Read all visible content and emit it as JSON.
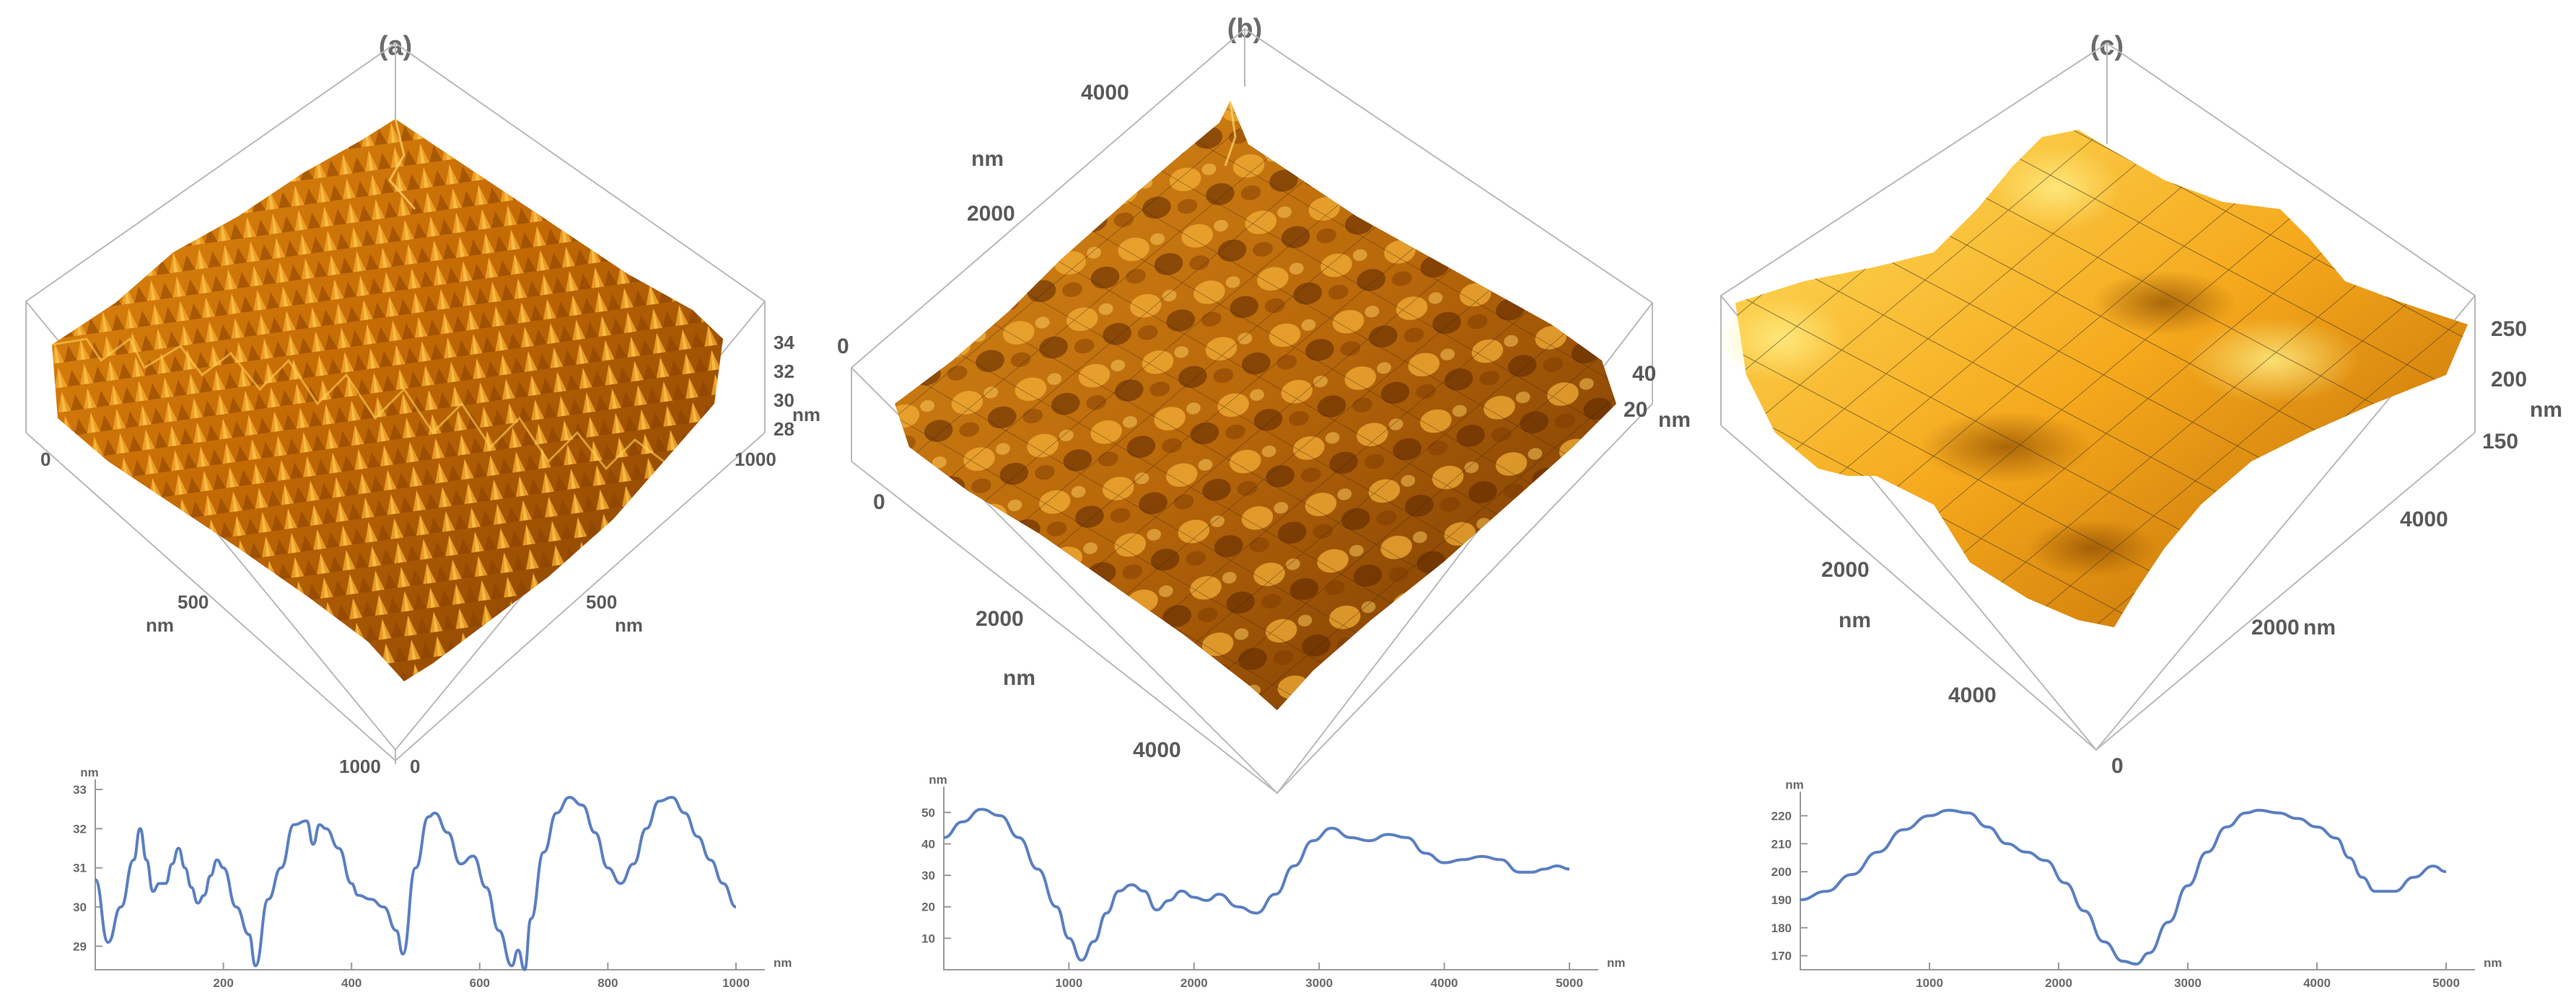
{
  "panels": [
    {
      "label": "(a)",
      "surface": {
        "xy_ticks_left": [
          "0",
          "500",
          "1000"
        ],
        "xy_unit_left": "nm",
        "xy_ticks_right": [
          "0",
          "500",
          "1000"
        ],
        "xy_unit_right": "nm",
        "z_ticks": [
          "34",
          "32",
          "30",
          "28"
        ],
        "z_unit": "nm",
        "palette": [
          "#7a3a00",
          "#c96a00",
          "#f0a420",
          "#ffd24a"
        ]
      },
      "profile": {
        "y_unit": "nm",
        "x_unit": "nm",
        "y_ticks": [
          "33",
          "32",
          "31",
          "30",
          "29"
        ],
        "x_ticks": [
          "200",
          "400",
          "600",
          "800",
          "1000"
        ]
      }
    },
    {
      "label": "(b)",
      "surface": {
        "xy_ticks_left": [
          "4000",
          "2000",
          "0"
        ],
        "xy_unit_left": "nm",
        "xy_ticks_bottom": [
          "0",
          "2000",
          "4000"
        ],
        "xy_unit_bottom": "nm",
        "z_ticks": [
          "40",
          "20"
        ],
        "z_unit": "nm",
        "palette": [
          "#6b3000",
          "#b8670a",
          "#e89a22",
          "#ffce45"
        ]
      },
      "profile": {
        "y_unit": "nm",
        "x_unit": "nm",
        "y_ticks": [
          "50",
          "40",
          "30",
          "20",
          "10"
        ],
        "x_ticks": [
          "1000",
          "2000",
          "3000",
          "4000",
          "5000"
        ]
      }
    },
    {
      "label": "(c)",
      "surface": {
        "xy_ticks_left": [
          "2000",
          "4000"
        ],
        "xy_unit_left": "nm",
        "xy_ticks_right": [
          "0",
          "2000",
          "4000"
        ],
        "xy_unit_right": "nm",
        "z_ticks": [
          "250",
          "200",
          "150"
        ],
        "z_unit": "nm",
        "palette": [
          "#8a4a00",
          "#e08a10",
          "#ffbf2a",
          "#ffe46a"
        ]
      },
      "profile": {
        "y_unit": "nm",
        "x_unit": "nm",
        "y_ticks": [
          "220",
          "210",
          "200",
          "190",
          "180",
          "170"
        ],
        "x_ticks": [
          "1000",
          "2000",
          "3000",
          "4000",
          "5000"
        ]
      }
    }
  ],
  "chart_data": [
    {
      "type": "line",
      "title": "",
      "xlabel": "nm",
      "ylabel": "nm",
      "xlim": [
        0,
        1000
      ],
      "ylim": [
        28.4,
        33
      ],
      "x": [
        0,
        20,
        40,
        60,
        70,
        80,
        90,
        100,
        110,
        120,
        130,
        140,
        150,
        160,
        170,
        180,
        190,
        200,
        220,
        240,
        250,
        270,
        290,
        310,
        330,
        340,
        350,
        360,
        380,
        400,
        410,
        430,
        450,
        470,
        480,
        500,
        520,
        530,
        550,
        570,
        590,
        610,
        630,
        650,
        660,
        670,
        680,
        700,
        720,
        740,
        760,
        780,
        800,
        820,
        840,
        860,
        880,
        900,
        920,
        940,
        960,
        980,
        1000
      ],
      "series": [
        {
          "values": [
            30.7,
            29.1,
            30.0,
            31.2,
            32.0,
            31.2,
            30.4,
            30.6,
            30.6,
            31.1,
            31.5,
            31.0,
            30.5,
            30.1,
            30.3,
            30.8,
            31.2,
            31.0,
            30.0,
            29.3,
            28.5,
            30.2,
            31.0,
            32.1,
            32.2,
            31.6,
            32.1,
            32.0,
            31.5,
            30.6,
            30.3,
            30.2,
            30.0,
            29.4,
            28.8,
            31.0,
            32.3,
            32.4,
            31.9,
            31.1,
            31.3,
            30.5,
            29.4,
            28.5,
            28.9,
            28.4,
            29.7,
            31.4,
            32.4,
            32.8,
            32.6,
            31.9,
            31.0,
            30.6,
            31.1,
            32.0,
            32.7,
            32.8,
            32.4,
            31.8,
            31.2,
            30.6,
            30.0
          ]
        }
      ]
    },
    {
      "type": "line",
      "title": "",
      "xlabel": "nm",
      "ylabel": "nm",
      "xlim": [
        0,
        5000
      ],
      "ylim": [
        0,
        55
      ],
      "x": [
        0,
        150,
        300,
        450,
        600,
        750,
        900,
        1000,
        1100,
        1200,
        1300,
        1400,
        1500,
        1600,
        1700,
        1800,
        1900,
        2000,
        2100,
        2200,
        2350,
        2500,
        2650,
        2800,
        2950,
        3100,
        3250,
        3400,
        3550,
        3700,
        3850,
        4000,
        4150,
        4300,
        4450,
        4600,
        4700,
        4800,
        4900,
        5000
      ],
      "series": [
        {
          "values": [
            42,
            47,
            51,
            49,
            42,
            32,
            20,
            10,
            3,
            9,
            18,
            25,
            27,
            25,
            19,
            22,
            25,
            23,
            22,
            24,
            20,
            18,
            24,
            33,
            41,
            45,
            42,
            41,
            43,
            42,
            37,
            34,
            35,
            36,
            35,
            31,
            31,
            32,
            33,
            32
          ]
        }
      ]
    },
    {
      "type": "line",
      "title": "",
      "xlabel": "nm",
      "ylabel": "nm",
      "xlim": [
        0,
        5000
      ],
      "ylim": [
        165,
        225
      ],
      "x": [
        0,
        200,
        400,
        600,
        800,
        1000,
        1150,
        1300,
        1450,
        1600,
        1750,
        1900,
        2050,
        2200,
        2350,
        2500,
        2600,
        2700,
        2850,
        3000,
        3150,
        3300,
        3450,
        3550,
        3700,
        3850,
        4000,
        4150,
        4250,
        4350,
        4450,
        4600,
        4750,
        4900,
        5000
      ],
      "series": [
        {
          "values": [
            190,
            193,
            199,
            207,
            215,
            220,
            222,
            221,
            216,
            210,
            207,
            204,
            196,
            186,
            175,
            168,
            167,
            171,
            182,
            195,
            207,
            216,
            221,
            222,
            221,
            219,
            216,
            212,
            205,
            198,
            193,
            193,
            198,
            202,
            200
          ]
        }
      ]
    }
  ]
}
